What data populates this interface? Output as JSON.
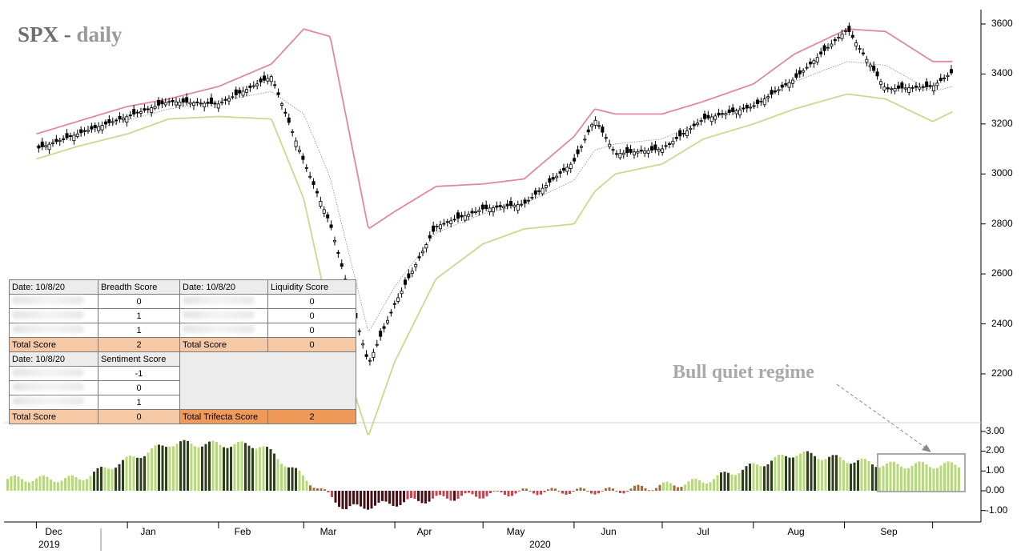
{
  "title": {
    "symbol": "SPX",
    "sep": " - ",
    "period": "daily"
  },
  "annotation": {
    "text": "Bull quiet regime"
  },
  "colors": {
    "upper_band": "#e0889e",
    "lower_band": "#c4dc8e",
    "mid_line": "#8a8a8a",
    "candle": "#000000",
    "hist_dark_green": "#2f3f1e",
    "hist_light_green": "#b4db74",
    "hist_dark_red": "#4a0f14",
    "hist_red": "#c9444b",
    "hist_brown": "#a66a3a",
    "box": "#a9a9a9"
  },
  "table": {
    "breadth": {
      "date_label": "Date: 10/8/20",
      "score_label": "Breadth Score",
      "values": [
        "0",
        "1",
        "1"
      ],
      "total_label": "Total Score",
      "total": "2"
    },
    "liquidity": {
      "date_label": "Date: 10/8/20",
      "score_label": "Liquidity Score",
      "values": [
        "0",
        "0",
        "0"
      ],
      "total_label": "Total Score",
      "total": "0"
    },
    "sentiment": {
      "date_label": "Date: 10/8/20",
      "score_label": "Sentiment Score",
      "values": [
        "-1",
        "0",
        "1"
      ],
      "total_label": "Total Score",
      "total": "0"
    },
    "trifecta": {
      "label": "Total Trifecta Score",
      "value": "2"
    }
  },
  "axes": {
    "price_ticks": [
      "3600",
      "3400",
      "3200",
      "3000",
      "2800",
      "2600",
      "2400",
      "2200"
    ],
    "hist_ticks": [
      "3.00",
      "2.00",
      "1.00",
      "0.00",
      "-1.00"
    ],
    "months": [
      "Dec",
      "Jan",
      "Feb",
      "Mar",
      "Apr",
      "May",
      "Jun",
      "Jul",
      "Aug",
      "Sep"
    ],
    "years": [
      "2019",
      "2020"
    ]
  },
  "chart_data": [
    {
      "type": "line",
      "title": "SPX - daily",
      "x": [
        "2019-12-01",
        "2019-12-15",
        "2020-01-01",
        "2020-01-15",
        "2020-02-01",
        "2020-02-19",
        "2020-03-01",
        "2020-03-10",
        "2020-03-23",
        "2020-04-01",
        "2020-04-15",
        "2020-05-01",
        "2020-05-15",
        "2020-06-01",
        "2020-06-08",
        "2020-06-15",
        "2020-07-01",
        "2020-07-15",
        "2020-08-01",
        "2020-08-15",
        "2020-09-02",
        "2020-09-15",
        "2020-10-01",
        "2020-10-08"
      ],
      "series": [
        {
          "name": "",
          "values": [
            3100,
            3160,
            3230,
            3290,
            3280,
            3390,
            3050,
            2800,
            2240,
            2480,
            2790,
            2860,
            2880,
            3050,
            3220,
            3080,
            3100,
            3220,
            3270,
            3380,
            3580,
            3340,
            3350,
            3410
          ]
        },
        {
          "name": "",
          "values": [
            3160,
            3210,
            3270,
            3300,
            3350,
            3440,
            3580,
            3550,
            2780,
            2850,
            2950,
            2960,
            2980,
            3150,
            3260,
            3240,
            3240,
            3290,
            3360,
            3480,
            3580,
            3570,
            3450,
            3450
          ]
        },
        {
          "name": "",
          "values": [
            3060,
            3110,
            3160,
            3220,
            3230,
            3220,
            2900,
            2420,
            1950,
            2250,
            2580,
            2720,
            2780,
            2800,
            2930,
            3000,
            3040,
            3140,
            3200,
            3260,
            3320,
            3300,
            3210,
            3250
          ]
        }
      ],
      "ylim": [
        2050,
        3650
      ]
    },
    {
      "type": "bar",
      "x": [
        "2019-12",
        "2020-01",
        "2020-02",
        "2020-03",
        "2020-04",
        "2020-05",
        "2020-06",
        "2020-07",
        "2020-08",
        "2020-09"
      ],
      "values": [
        0.6,
        2.4,
        2.3,
        -0.9,
        -0.4,
        -0.05,
        0.0,
        0.5,
        1.9,
        1.3
      ],
      "ylim": [
        -1.0,
        3.0
      ]
    }
  ]
}
